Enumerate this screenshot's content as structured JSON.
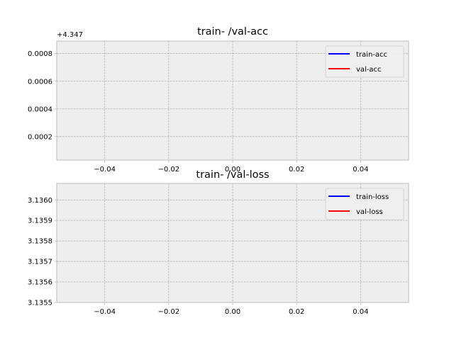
{
  "chart_data": [
    {
      "type": "line",
      "title": "train- /val-acc",
      "xlabel": "",
      "ylabel": "",
      "xlim": [
        -0.055,
        0.055
      ],
      "ylim": [
        3e-05,
        0.00089
      ],
      "y_offset_label": "+4.347",
      "x_ticks": [
        -0.04,
        -0.02,
        0.0,
        0.02,
        0.04
      ],
      "x_tick_labels": [
        "−0.04",
        "−0.02",
        "0.00",
        "0.02",
        "0.04"
      ],
      "y_ticks": [
        0.0002,
        0.0004,
        0.0006,
        0.0008
      ],
      "y_tick_labels": [
        "0.0002",
        "0.0004",
        "0.0006",
        "0.0008"
      ],
      "grid": true,
      "legend_position": "top-right",
      "series": [
        {
          "name": "train-acc",
          "color": "#0000ff",
          "x": [],
          "y": []
        },
        {
          "name": "val-acc",
          "color": "#ff0000",
          "x": [],
          "y": []
        }
      ]
    },
    {
      "type": "line",
      "title": "train- /val-loss",
      "xlabel": "",
      "ylabel": "",
      "xlim": [
        -0.055,
        0.055
      ],
      "ylim": [
        3.1355,
        3.13608
      ],
      "y_offset_label": "",
      "x_ticks": [
        -0.04,
        -0.02,
        0.0,
        0.02,
        0.04
      ],
      "x_tick_labels": [
        "−0.04",
        "−0.02",
        "0.00",
        "0.02",
        "0.04"
      ],
      "y_ticks": [
        3.1355,
        3.1356,
        3.1357,
        3.1358,
        3.1359,
        3.136
      ],
      "y_tick_labels": [
        "3.1355",
        "3.1356",
        "3.1357",
        "3.1358",
        "3.1359",
        "3.1360"
      ],
      "grid": true,
      "legend_position": "top-right",
      "series": [
        {
          "name": "train-loss",
          "color": "#0000ff",
          "x": [],
          "y": []
        },
        {
          "name": "val-loss",
          "color": "#ff0000",
          "x": [],
          "y": []
        }
      ]
    }
  ],
  "style": {
    "axes_bg": "#eeeeee",
    "axes_edge": "#bcbcbc",
    "grid_color": "#b0b0b0",
    "tick_color": "#bcbcbc"
  }
}
